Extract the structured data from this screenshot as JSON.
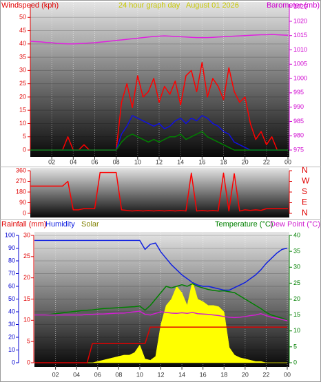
{
  "chart_data": [
    {
      "type": "line",
      "title": "24 hour graph day   August 01 2026",
      "y_label": "Windspeed (kph)",
      "y2_label": "Barometer (mb)",
      "axis_colors": {
        "y": "#e00000",
        "y2": "#d000d0"
      },
      "grid": true,
      "x": [
        0,
        0.5,
        1,
        1.5,
        2,
        2.5,
        3,
        3.5,
        4,
        4.5,
        5,
        5.5,
        6,
        6.5,
        7,
        7.5,
        8,
        8.5,
        9,
        9.5,
        10,
        10.5,
        11,
        11.5,
        12,
        12.5,
        13,
        13.5,
        14,
        14.5,
        15,
        15.5,
        16,
        16.5,
        17,
        17.5,
        18,
        18.5,
        19,
        19.5,
        20,
        20.5,
        21,
        21.5,
        22,
        22.5,
        23,
        23.5,
        24
      ],
      "xlim": [
        0,
        24
      ],
      "xticks": [
        {
          "value": 2,
          "label": "02"
        },
        {
          "value": 4,
          "label": "04"
        },
        {
          "value": 6,
          "label": "06"
        },
        {
          "value": 8,
          "label": "08"
        },
        10,
        12,
        14,
        16,
        18,
        20,
        22,
        {
          "value": 24,
          "label": "00"
        }
      ],
      "ylim": [
        0,
        55
      ],
      "yticks": [
        0,
        5,
        10,
        15,
        20,
        25,
        30,
        35,
        40,
        45,
        50
      ],
      "y2lim": [
        975,
        1026
      ],
      "y2ticks": [
        975,
        980,
        985,
        990,
        995,
        1000,
        1005,
        1010,
        1015,
        1020,
        1025
      ],
      "series": [
        {
          "color": "#ff0000",
          "values": [
            0,
            0,
            0,
            0,
            0,
            0,
            0,
            5,
            0,
            0,
            2,
            0,
            0,
            0,
            0,
            0,
            0,
            18,
            25,
            16,
            28,
            20,
            22,
            27,
            18,
            24,
            21,
            26,
            17,
            28,
            30,
            22,
            33,
            20,
            27,
            24,
            19,
            31,
            22,
            18,
            20,
            10,
            4,
            7,
            2,
            5,
            0,
            0,
            0
          ]
        },
        {
          "color": "#1010e0",
          "values": [
            0,
            0,
            0,
            0,
            0,
            0,
            0,
            0,
            0,
            0,
            0,
            0,
            0,
            0,
            0,
            0,
            0,
            6,
            9,
            13,
            12,
            11,
            10,
            9,
            10,
            8,
            9,
            11,
            12,
            10,
            12,
            11,
            13,
            12,
            10,
            9,
            7,
            6,
            3,
            2,
            1,
            0,
            0,
            0,
            0,
            0,
            0,
            0,
            0
          ]
        },
        {
          "color": "#008000",
          "values": [
            0,
            0,
            0,
            0,
            0,
            0,
            0,
            0,
            0,
            0,
            0,
            0,
            0,
            0,
            0,
            0,
            0,
            3,
            5,
            6,
            5,
            4,
            3,
            4,
            3,
            4,
            5,
            5,
            6,
            4,
            5,
            6,
            7,
            5,
            4,
            3,
            2,
            1,
            0,
            0,
            0,
            0,
            0,
            0,
            0,
            0,
            0,
            0,
            0
          ]
        },
        {
          "color": "#e020e0",
          "axis": "y2",
          "values": [
            1013,
            1012.9,
            1012.8,
            1012.6,
            1012.5,
            1012.3,
            1012.2,
            1012.1,
            1012.1,
            1012.2,
            1012.3,
            1012.4,
            1012.5,
            1012.7,
            1012.9,
            1013.1,
            1013.3,
            1013.5,
            1013.7,
            1013.9,
            1014.1,
            1014.3,
            1014.5,
            1014.7,
            1014.8,
            1014.9,
            1014.8,
            1014.7,
            1014.6,
            1014.5,
            1014.4,
            1014.3,
            1014.3,
            1014.3,
            1014.4,
            1014.5,
            1014.6,
            1014.7,
            1014.8,
            1014.9,
            1015,
            1015.1,
            1015.2,
            1015.3,
            1015.3,
            1015.4,
            1015.3,
            1015.2,
            1015.1
          ]
        }
      ]
    },
    {
      "type": "line",
      "axis_colors": {
        "y": "#e00000",
        "y2": "#e00000"
      },
      "x": [
        0,
        0.5,
        1,
        1.5,
        2,
        2.5,
        3,
        3.5,
        4,
        4.5,
        5,
        5.5,
        6,
        6.5,
        7,
        7.5,
        8,
        8.5,
        9,
        9.5,
        10,
        10.5,
        11,
        11.5,
        12,
        12.5,
        13,
        13.5,
        14,
        14.5,
        15,
        15.5,
        16,
        16.5,
        17,
        17.5,
        18,
        18.5,
        19,
        19.5,
        20,
        20.5,
        21,
        21.5,
        22,
        22.5,
        23,
        23.5,
        24
      ],
      "xlim": [
        0,
        24
      ],
      "ylim": [
        0,
        360
      ],
      "yticks": [
        0,
        90,
        180,
        270,
        360
      ],
      "y2lim": [
        0,
        360
      ],
      "y2ticks": [
        {
          "value": 0,
          "label": "N"
        },
        {
          "value": 90,
          "label": "E"
        },
        {
          "value": 180,
          "label": "S"
        },
        {
          "value": 270,
          "label": "W"
        },
        {
          "value": 360,
          "label": "N"
        }
      ],
      "series": [
        {
          "color": "#ff0000",
          "values": [
            230,
            230,
            230,
            230,
            230,
            230,
            230,
            270,
            30,
            30,
            40,
            40,
            40,
            345,
            345,
            345,
            345,
            30,
            25,
            20,
            25,
            20,
            25,
            20,
            25,
            20,
            25,
            20,
            25,
            20,
            340,
            20,
            25,
            20,
            25,
            20,
            340,
            20,
            335,
            20,
            30,
            25,
            30,
            25,
            40,
            40,
            40,
            40,
            40
          ]
        }
      ]
    },
    {
      "type": "line",
      "axis_colors": {
        "y": "#0000d0",
        "y2": "#008000",
        "y3": "#e00000"
      },
      "grid": true,
      "x": [
        0,
        0.5,
        1,
        1.5,
        2,
        2.5,
        3,
        3.5,
        4,
        4.5,
        5,
        5.5,
        6,
        6.5,
        7,
        7.5,
        8,
        8.5,
        9,
        9.5,
        10,
        10.5,
        11,
        11.5,
        12,
        12.5,
        13,
        13.5,
        14,
        14.5,
        15,
        15.5,
        16,
        16.5,
        17,
        17.5,
        18,
        18.5,
        19,
        19.5,
        20,
        20.5,
        21,
        21.5,
        22,
        22.5,
        23,
        23.5,
        24
      ],
      "xlim": [
        0,
        24
      ],
      "xticks": [
        {
          "value": 2,
          "label": "02"
        },
        {
          "value": 4,
          "label": "04"
        },
        {
          "value": 6,
          "label": "06"
        },
        {
          "value": 8,
          "label": "08"
        },
        10,
        12,
        14,
        16,
        18,
        20,
        22,
        {
          "value": 24,
          "label": "00"
        }
      ],
      "ylim": [
        0,
        100
      ],
      "yticks": [
        0,
        10,
        20,
        30,
        40,
        50,
        60,
        70,
        80,
        90,
        100
      ],
      "y2lim": [
        0,
        40
      ],
      "y2ticks": [
        0,
        5,
        10,
        15,
        20,
        25,
        30,
        35,
        40
      ],
      "y3lim": [
        0,
        30
      ],
      "y3ticks": [
        0,
        5,
        10,
        15,
        20,
        25,
        30
      ],
      "series": [
        {
          "name": "Rainfall (mm)",
          "color": "#e00000",
          "axis": "y3",
          "values": [
            0,
            0,
            0,
            0,
            0,
            0,
            0,
            0,
            0,
            0,
            0,
            4.5,
            4.5,
            4.5,
            4.5,
            4.5,
            4.5,
            4.5,
            4.5,
            4.5,
            4.5,
            4.5,
            8.4,
            8.4,
            8.4,
            8.4,
            8.4,
            8.4,
            8.4,
            8.4,
            8.4,
            8.4,
            8.4,
            8.4,
            8.4,
            8.4,
            8.4,
            8.4,
            8.4,
            8.4,
            8.4,
            8.4,
            8.4,
            8.4,
            8.4,
            8.4,
            8.4,
            8.4,
            8.4
          ]
        },
        {
          "name": "Humidity",
          "color": "#1020e0",
          "values": [
            96,
            96,
            96,
            96,
            96,
            96,
            96,
            96,
            96,
            96,
            96,
            96,
            96,
            96,
            96,
            96,
            96,
            96,
            96,
            96,
            96,
            89,
            93,
            94,
            87,
            82,
            77,
            73,
            69,
            66,
            63,
            61,
            60,
            60,
            59,
            58,
            57,
            57,
            59,
            61,
            63,
            66,
            69,
            73,
            78,
            82,
            86,
            89,
            90
          ]
        },
        {
          "name": "Solar",
          "color": "#ffff00",
          "label_color": "#808000",
          "fill": true,
          "values": [
            0,
            0,
            0,
            0,
            0,
            0,
            0,
            0,
            0,
            0,
            0,
            0,
            1,
            2,
            3,
            4,
            5,
            6,
            6,
            8,
            14,
            3,
            2,
            5,
            30,
            45,
            50,
            60,
            55,
            45,
            64,
            50,
            48,
            45,
            45,
            44,
            40,
            12,
            6,
            4,
            3,
            2,
            1,
            1,
            0,
            0,
            0,
            0,
            0
          ]
        },
        {
          "name": "Temperature (°C)",
          "color": "#008000",
          "axis": "y2",
          "values": [
            15,
            15,
            15,
            15.2,
            15.4,
            15.6,
            15.8,
            16,
            16.2,
            16.4,
            16.5,
            16.6,
            16.8,
            17,
            17.1,
            17.2,
            17.3,
            17.4,
            17.5,
            17.6,
            17.8,
            16.5,
            18,
            20,
            22,
            24,
            23.5,
            24,
            24.5,
            24,
            24.8,
            24,
            23.5,
            23,
            22.7,
            22.5,
            22.6,
            22.3,
            22,
            21,
            20,
            19,
            18,
            17,
            15.8,
            15,
            14.5,
            14,
            13.4
          ]
        },
        {
          "name": "Dew Point (°C)",
          "color": "#d020d0",
          "axis": "y2",
          "values": [
            15,
            15,
            15,
            15,
            15,
            15,
            15,
            15,
            15,
            15,
            15.2,
            15.2,
            15.3,
            15.3,
            15.4,
            15.5,
            15.6,
            15.6,
            15.8,
            16,
            16.2,
            15.2,
            15,
            15.5,
            16,
            15.8,
            15.6,
            15.5,
            15.7,
            15.5,
            15.8,
            15.4,
            15.3,
            15.2,
            15,
            14.8,
            14.5,
            14.3,
            14.2,
            14.3,
            14.5,
            14.8,
            15,
            15.4,
            14.8,
            14.3,
            14,
            13.6,
            13.2
          ]
        }
      ]
    }
  ]
}
